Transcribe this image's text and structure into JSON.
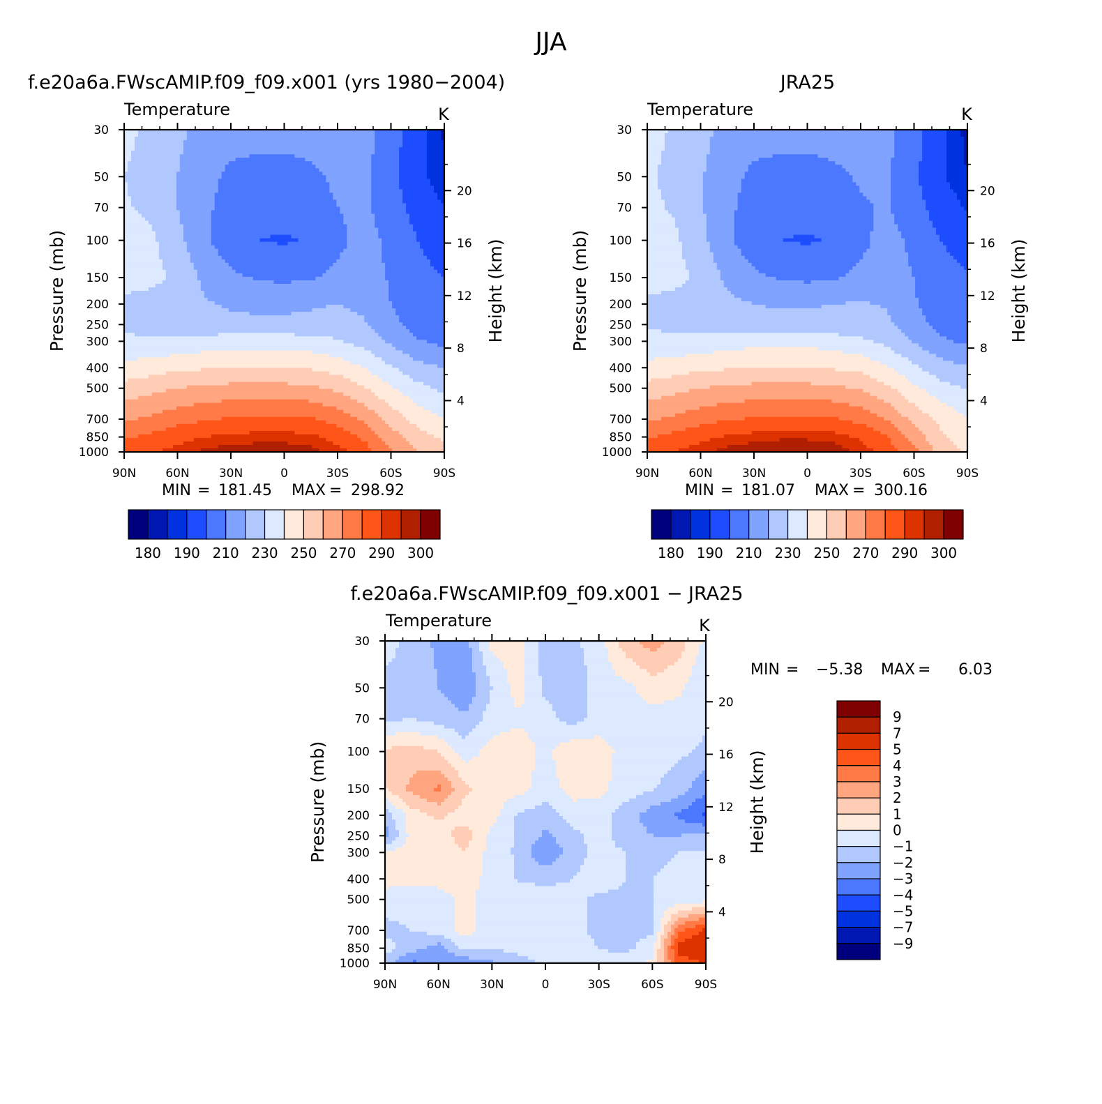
{
  "figure_title": "JJA",
  "panels": [
    {
      "title": "f.e20a6a.FWscAMIP.f09_f09.x001 (yrs 1980−2004)",
      "variable": "Temperature",
      "units": "K",
      "min_label": "MIN",
      "min_value": "181.45",
      "max_label": "MAX",
      "max_value": "298.92"
    },
    {
      "title": "JRA25",
      "variable": "Temperature",
      "units": "K",
      "min_label": "MIN",
      "min_value": "181.07",
      "max_label": "MAX",
      "max_value": "300.16"
    },
    {
      "title": "f.e20a6a.FWscAMIP.f09_f09.x001 − JRA25",
      "variable": "Temperature",
      "units": "K",
      "min_label": "MIN",
      "min_value": "−5.38",
      "max_label": "MAX",
      "max_value": "6.03"
    }
  ],
  "colors": {
    "abs_palette": [
      "#00007f",
      "#0018b1",
      "#0032e0",
      "#1e4cff",
      "#4b78ff",
      "#7fa3ff",
      "#b1c8ff",
      "#dce9ff",
      "#ffeadc",
      "#ffccb5",
      "#ffa57f",
      "#ff7a47",
      "#ff5518",
      "#dd3300",
      "#b01f00",
      "#7f0000"
    ],
    "diff_palette": [
      "#00007f",
      "#0018b1",
      "#0032e0",
      "#1e4cff",
      "#4b78ff",
      "#7fa3ff",
      "#b1c8ff",
      "#dce9ff",
      "#ffeadc",
      "#ffccb5",
      "#ffa57f",
      "#ff7a47",
      "#ff5518",
      "#dd3300",
      "#b01f00",
      "#7f0000"
    ]
  },
  "chart_data": [
    {
      "type": "heatmap",
      "title": "f.e20a6a.FWscAMIP.f09_f09.x001 (yrs 1980−2004)",
      "subtitle": "Temperature",
      "units": "K",
      "xlabel": "",
      "ylabel": "Pressure (mb)",
      "y2label": "Height (km)",
      "x": [
        90,
        75,
        60,
        45,
        30,
        15,
        0,
        -15,
        -30,
        -45,
        -60,
        -75,
        -90
      ],
      "x_ticks": [
        "90N",
        "60N",
        "30N",
        "0",
        "30S",
        "60S",
        "90S"
      ],
      "y": [
        30,
        50,
        70,
        100,
        150,
        200,
        250,
        300,
        400,
        500,
        700,
        850,
        1000
      ],
      "y_ticks": [
        "30",
        "50",
        "70",
        "100",
        "150",
        "200",
        "250",
        "300",
        "400",
        "500",
        "700",
        "850",
        "1000"
      ],
      "y2_ticks": [
        "4",
        "8",
        "12",
        "16",
        "20"
      ],
      "y2_values": [
        4,
        8,
        12,
        16,
        20
      ],
      "colorbar_levels": [
        180,
        185,
        190,
        200,
        210,
        220,
        230,
        240,
        250,
        260,
        270,
        280,
        290,
        295,
        300
      ],
      "colorbar_labels": [
        "180",
        "190",
        "210",
        "230",
        "250",
        "270",
        "290",
        "300"
      ],
      "z": [
        [
          232,
          228,
          222,
          217,
          214,
          213,
          213,
          214,
          216,
          214,
          205,
          193,
          184
        ],
        [
          230,
          227,
          220,
          213,
          208,
          207,
          207,
          208,
          212,
          212,
          203,
          192,
          186
        ],
        [
          231,
          228,
          220,
          212,
          206,
          204,
          204,
          205,
          210,
          212,
          205,
          196,
          190
        ],
        [
          236,
          232,
          223,
          212,
          204,
          200,
          199,
          201,
          208,
          213,
          208,
          200,
          195
        ],
        [
          237,
          234,
          227,
          218,
          212,
          209,
          208,
          209,
          212,
          214,
          209,
          203,
          200
        ],
        [
          226,
          224,
          223,
          221,
          219,
          218,
          218,
          219,
          220,
          218,
          210,
          203,
          200
        ],
        [
          228,
          227,
          225,
          223,
          222,
          222,
          222,
          222,
          224,
          221,
          213,
          206,
          202
        ],
        [
          232,
          231,
          232,
          234,
          236,
          236,
          236,
          234,
          231,
          226,
          218,
          211,
          207
        ],
        [
          243,
          245,
          248,
          249,
          250,
          250,
          250,
          249,
          246,
          240,
          231,
          223,
          220
        ],
        [
          254,
          257,
          260,
          262,
          263,
          263,
          263,
          262,
          258,
          251,
          241,
          233,
          228
        ],
        [
          268,
          272,
          276,
          279,
          281,
          282,
          282,
          281,
          276,
          268,
          256,
          246,
          240
        ],
        [
          279,
          282,
          287,
          290,
          292,
          293,
          293,
          292,
          287,
          278,
          265,
          254,
          248
        ],
        [
          286,
          289,
          293,
          296,
          298,
          298,
          298,
          297,
          293,
          285,
          271,
          260,
          253
        ]
      ]
    },
    {
      "type": "heatmap",
      "title": "JRA25",
      "subtitle": "Temperature",
      "units": "K",
      "xlabel": "",
      "ylabel": "Pressure (mb)",
      "y2label": "Height (km)",
      "x": [
        90,
        75,
        60,
        45,
        30,
        15,
        0,
        -15,
        -30,
        -45,
        -60,
        -75,
        -90
      ],
      "x_ticks": [
        "90N",
        "60N",
        "30N",
        "0",
        "30S",
        "60S",
        "90S"
      ],
      "y": [
        30,
        50,
        70,
        100,
        150,
        200,
        250,
        300,
        400,
        500,
        700,
        850,
        1000
      ],
      "y_ticks": [
        "30",
        "50",
        "70",
        "100",
        "150",
        "200",
        "250",
        "300",
        "400",
        "500",
        "700",
        "850",
        "1000"
      ],
      "y2_ticks": [
        "4",
        "8",
        "12",
        "16",
        "20"
      ],
      "y2_values": [
        4,
        8,
        12,
        16,
        20
      ],
      "colorbar_levels": [
        180,
        185,
        190,
        200,
        210,
        220,
        230,
        240,
        250,
        260,
        270,
        280,
        290,
        295,
        300
      ],
      "colorbar_labels": [
        "180",
        "190",
        "210",
        "230",
        "250",
        "270",
        "290",
        "300"
      ],
      "z": [
        [
          233,
          229,
          223,
          217,
          214,
          213,
          213,
          214,
          215,
          213,
          204,
          192,
          183
        ],
        [
          231,
          228,
          221,
          213,
          208,
          207,
          207,
          208,
          211,
          211,
          202,
          191,
          185
        ],
        [
          232,
          229,
          221,
          212,
          206,
          204,
          204,
          205,
          209,
          211,
          204,
          195,
          189
        ],
        [
          236,
          232,
          223,
          212,
          204,
          200,
          199,
          201,
          208,
          213,
          208,
          200,
          195
        ],
        [
          237,
          234,
          227,
          218,
          212,
          209,
          208,
          209,
          212,
          214,
          210,
          204,
          201
        ],
        [
          227,
          225,
          224,
          222,
          220,
          219,
          219,
          220,
          221,
          219,
          211,
          204,
          201
        ],
        [
          229,
          228,
          226,
          224,
          223,
          223,
          223,
          223,
          225,
          222,
          214,
          207,
          203
        ],
        [
          233,
          232,
          233,
          235,
          237,
          237,
          237,
          235,
          232,
          227,
          219,
          212,
          208
        ],
        [
          243,
          245,
          248,
          249,
          250,
          250,
          250,
          249,
          247,
          241,
          232,
          224,
          221
        ],
        [
          254,
          257,
          260,
          262,
          263,
          263,
          263,
          262,
          259,
          252,
          242,
          234,
          229
        ],
        [
          268,
          272,
          276,
          279,
          281,
          282,
          282,
          281,
          277,
          269,
          257,
          247,
          241
        ],
        [
          279,
          283,
          288,
          291,
          293,
          294,
          294,
          293,
          289,
          280,
          266,
          252,
          245
        ],
        [
          287,
          290,
          294,
          297,
          299,
          300,
          300,
          298,
          294,
          286,
          273,
          256,
          248
        ]
      ]
    },
    {
      "type": "heatmap",
      "title": "f.e20a6a.FWscAMIP.f09_f09.x001 − JRA25",
      "subtitle": "Temperature",
      "units": "K",
      "xlabel": "",
      "ylabel": "Pressure (mb)",
      "y2label": "Height (km)",
      "x": [
        90,
        75,
        60,
        45,
        30,
        15,
        0,
        -15,
        -30,
        -45,
        -60,
        -75,
        -90
      ],
      "x_ticks": [
        "90N",
        "60N",
        "30N",
        "0",
        "30S",
        "60S",
        "90S"
      ],
      "y": [
        30,
        50,
        70,
        100,
        150,
        200,
        250,
        300,
        400,
        500,
        700,
        850,
        1000
      ],
      "y_ticks": [
        "30",
        "50",
        "70",
        "100",
        "150",
        "200",
        "250",
        "300",
        "400",
        "500",
        "700",
        "850",
        "1000"
      ],
      "y2_ticks": [
        "4",
        "8",
        "12",
        "16",
        "20"
      ],
      "y2_values": [
        4,
        8,
        12,
        16,
        20
      ],
      "colorbar_levels": [
        -9,
        -7,
        -5,
        -4,
        -3,
        -2,
        -1,
        0,
        1,
        2,
        3,
        4,
        5,
        7,
        9
      ],
      "colorbar_labels": [
        "−9",
        "−7",
        "−5",
        "−4",
        "−3",
        "−2",
        "−1",
        "0",
        "1",
        "2",
        "3",
        "4",
        "5",
        "7",
        "9"
      ],
      "z": [
        [
          -0.5,
          -1.5,
          -2.2,
          -2.5,
          0.4,
          0.3,
          -1.5,
          -1.2,
          -0.5,
          1.6,
          2.5,
          1.5,
          -0.3
        ],
        [
          -1.4,
          -1.2,
          -2.0,
          -2.8,
          -1.0,
          0.5,
          -1.3,
          -1.8,
          -0.5,
          -0.3,
          0.5,
          0.2,
          -1.0
        ],
        [
          -1.2,
          -1.0,
          -1.4,
          -1.8,
          -0.5,
          -0.2,
          -0.5,
          -1.5,
          -0.5,
          -0.5,
          -0.4,
          -0.5,
          -0.8
        ],
        [
          1.2,
          1.5,
          1.0,
          -0.5,
          0.4,
          0.6,
          -0.3,
          0.8,
          0.5,
          -0.4,
          -0.6,
          -0.8,
          -1.2
        ],
        [
          1.0,
          2.3,
          3.2,
          1.2,
          0.5,
          0.4,
          -0.5,
          0.4,
          0.3,
          -0.5,
          -0.9,
          -1.5,
          -2.8
        ],
        [
          -1.6,
          0.5,
          1.2,
          0.5,
          0.4,
          -1.2,
          -1.5,
          -0.5,
          -0.5,
          -1.5,
          -2.5,
          -3.2,
          -4.2
        ],
        [
          -2.5,
          0.4,
          0.5,
          1.5,
          -0.3,
          -1.2,
          -2.2,
          -1.3,
          -0.6,
          -1.5,
          -2.0,
          -2.0,
          -1.8
        ],
        [
          0.3,
          0.5,
          0.3,
          1.0,
          -0.4,
          -1.2,
          -3.0,
          -1.5,
          -0.6,
          -1.0,
          -1.2,
          -1.0,
          -1.0
        ],
        [
          0.4,
          0.2,
          0.4,
          0.5,
          -0.4,
          -1.1,
          -1.2,
          -1.0,
          -0.5,
          -1.0,
          -1.0,
          -0.8,
          -0.8
        ],
        [
          -0.5,
          -0.5,
          -0.5,
          0.3,
          -0.5,
          -0.5,
          -0.6,
          -0.8,
          -1.2,
          -1.2,
          -1.0,
          -0.6,
          -0.4
        ],
        [
          -1.3,
          -1.0,
          -0.6,
          0.4,
          -0.7,
          -0.6,
          -0.6,
          -0.8,
          -1.2,
          -1.3,
          -1.2,
          3.8,
          5.2
        ],
        [
          -0.6,
          -1.6,
          -2.5,
          -0.6,
          -1.0,
          -0.6,
          -0.5,
          -0.6,
          -1.0,
          -1.3,
          -0.4,
          5.5,
          6.0
        ],
        [
          -1.5,
          -3.2,
          -3.0,
          -2.8,
          -2.2,
          -1.5,
          -0.8,
          -0.8,
          -0.5,
          -0.5,
          0.2,
          4.5,
          5.0
        ]
      ]
    }
  ]
}
